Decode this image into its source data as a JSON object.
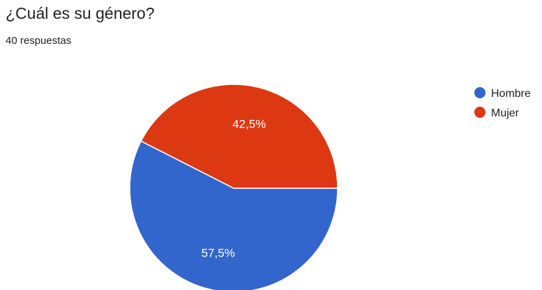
{
  "question": {
    "title": "¿Cuál es su género?",
    "response_count": "40 respuestas"
  },
  "chart_data": {
    "type": "pie",
    "legend_position": "right",
    "slices": [
      {
        "label": "Hombre",
        "value": 57.5,
        "value_label": "57,5%",
        "color": "#3366cc"
      },
      {
        "label": "Mujer",
        "value": 42.5,
        "value_label": "42,5%",
        "color": "#dc3912"
      }
    ]
  }
}
